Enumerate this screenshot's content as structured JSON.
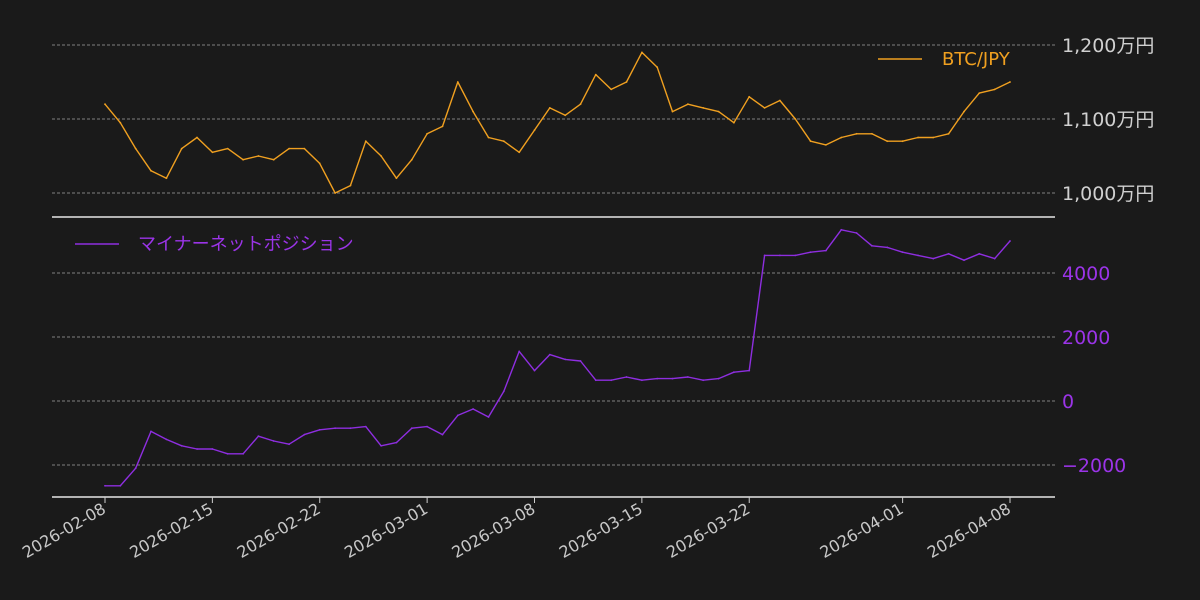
{
  "colors": {
    "background": "#1a1a1a",
    "btc": "#f0a020",
    "miner": "#8e2ee0",
    "text": "#d0d0d0"
  },
  "chart_data": [
    {
      "type": "line",
      "panel": "top",
      "legend_placement": "top-right",
      "series": [
        {
          "name": "BTC/JPY"
        }
      ],
      "y_ticks": [
        "1,000万円",
        "1,100万円",
        "1,200万円"
      ],
      "y_tick_values": [
        1000,
        1100,
        1200
      ],
      "ylim": [
        970,
        1235
      ],
      "grid": true,
      "x": [
        "2026-02-08",
        "2026-02-09",
        "2026-02-10",
        "2026-02-11",
        "2026-02-12",
        "2026-02-13",
        "2026-02-14",
        "2026-02-15",
        "2026-02-16",
        "2026-02-17",
        "2026-02-18",
        "2026-02-19",
        "2026-02-20",
        "2026-02-21",
        "2026-02-22",
        "2026-02-23",
        "2026-02-24",
        "2026-02-25",
        "2026-02-26",
        "2026-02-27",
        "2026-02-28",
        "2026-03-01",
        "2026-03-02",
        "2026-03-03",
        "2026-03-04",
        "2026-03-05",
        "2026-03-06",
        "2026-03-07",
        "2026-03-08",
        "2026-03-09",
        "2026-03-10",
        "2026-03-11",
        "2026-03-12",
        "2026-03-13",
        "2026-03-14",
        "2026-03-15",
        "2026-03-16",
        "2026-03-17",
        "2026-03-18",
        "2026-03-19",
        "2026-03-20",
        "2026-03-21",
        "2026-03-22",
        "2026-03-23",
        "2026-03-24",
        "2026-03-25",
        "2026-03-26",
        "2026-03-27",
        "2026-03-28",
        "2026-03-29",
        "2026-03-30",
        "2026-03-31",
        "2026-04-01",
        "2026-04-02",
        "2026-04-03",
        "2026-04-04",
        "2026-04-05",
        "2026-04-06",
        "2026-04-07",
        "2026-04-08"
      ],
      "values": [
        1120,
        1095,
        1060,
        1030,
        1020,
        1060,
        1075,
        1055,
        1060,
        1045,
        1050,
        1045,
        1060,
        1060,
        1040,
        1000,
        1010,
        1070,
        1050,
        1020,
        1045,
        1080,
        1090,
        1150,
        1110,
        1075,
        1070,
        1055,
        1085,
        1115,
        1105,
        1120,
        1160,
        1140,
        1150,
        1190,
        1170,
        1110,
        1120,
        1115,
        1110,
        1095,
        1130,
        1115,
        1125,
        1100,
        1070,
        1065,
        1075,
        1080,
        1080,
        1070,
        1070,
        1075,
        1075,
        1080,
        1110,
        1135,
        1140,
        1150
      ]
    },
    {
      "type": "line",
      "panel": "bottom",
      "legend_placement": "top-left",
      "series": [
        {
          "name": "マイナーネットポジション"
        }
      ],
      "y_ticks": [
        "−2000",
        "0",
        "2000",
        "4000"
      ],
      "y_tick_values": [
        -2000,
        0,
        2000,
        4000
      ],
      "ylim": [
        -2900,
        5500
      ],
      "grid": true,
      "x": [
        "2026-02-08",
        "2026-02-09",
        "2026-02-10",
        "2026-02-11",
        "2026-02-12",
        "2026-02-13",
        "2026-02-14",
        "2026-02-15",
        "2026-02-16",
        "2026-02-17",
        "2026-02-18",
        "2026-02-19",
        "2026-02-20",
        "2026-02-21",
        "2026-02-22",
        "2026-02-23",
        "2026-02-24",
        "2026-02-25",
        "2026-02-26",
        "2026-02-27",
        "2026-02-28",
        "2026-03-01",
        "2026-03-02",
        "2026-03-03",
        "2026-03-04",
        "2026-03-05",
        "2026-03-06",
        "2026-03-07",
        "2026-03-08",
        "2026-03-09",
        "2026-03-10",
        "2026-03-11",
        "2026-03-12",
        "2026-03-13",
        "2026-03-14",
        "2026-03-15",
        "2026-03-16",
        "2026-03-17",
        "2026-03-18",
        "2026-03-19",
        "2026-03-20",
        "2026-03-21",
        "2026-03-22",
        "2026-03-23",
        "2026-03-24",
        "2026-03-25",
        "2026-03-26",
        "2026-03-27",
        "2026-03-28",
        "2026-03-29",
        "2026-03-30",
        "2026-03-31",
        "2026-04-01",
        "2026-04-02",
        "2026-04-03",
        "2026-04-04",
        "2026-04-05",
        "2026-04-06",
        "2026-04-07",
        "2026-04-08"
      ],
      "values": [
        -2650,
        -2650,
        -2100,
        -950,
        -1200,
        -1400,
        -1500,
        -1500,
        -1650,
        -1650,
        -1100,
        -1250,
        -1350,
        -1050,
        -900,
        -850,
        -850,
        -800,
        -1400,
        -1300,
        -850,
        -800,
        -1050,
        -450,
        -250,
        -500,
        300,
        1550,
        950,
        1450,
        1300,
        1250,
        650,
        650,
        750,
        650,
        700,
        700,
        750,
        650,
        700,
        900,
        950,
        4550,
        4550,
        4550,
        4650,
        4700,
        5350,
        5250,
        4850,
        4800,
        4650,
        4550,
        4450,
        4600,
        4400,
        4600,
        4450,
        5000
      ]
    }
  ],
  "x_axis": {
    "tick_labels": [
      "2026-02-08",
      "2026-02-15",
      "2026-02-22",
      "2026-03-01",
      "2026-03-08",
      "2026-03-15",
      "2026-03-22",
      "2026-04-01",
      "2026-04-08"
    ]
  }
}
